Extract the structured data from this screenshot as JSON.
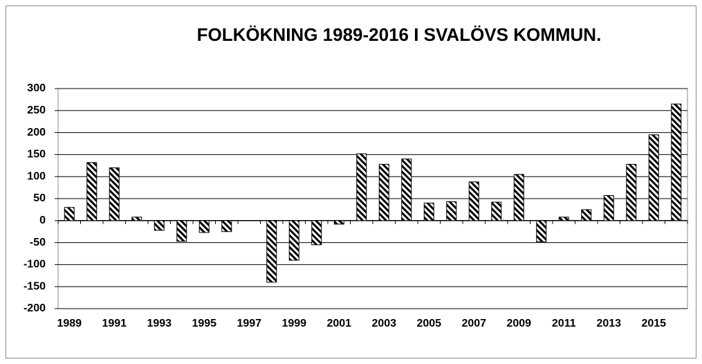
{
  "chart_data": {
    "type": "bar",
    "title": "FOLKÖKNING 1989-2016 I SVALÖVS KOMMUN.",
    "categories": [
      "1989",
      null,
      "1991",
      null,
      "1993",
      null,
      "1995",
      null,
      "1997",
      null,
      "1999",
      null,
      "2001",
      null,
      "2003",
      null,
      "2005",
      null,
      "2007",
      null,
      "2009",
      null,
      "2011",
      null,
      "2013",
      null,
      "2015",
      null
    ],
    "values": [
      30,
      132,
      120,
      8,
      -22,
      -47,
      -27,
      -25,
      0,
      -140,
      -90,
      -55,
      -8,
      152,
      128,
      140,
      40,
      43,
      88,
      42,
      105,
      -48,
      8,
      25,
      57,
      128,
      195,
      265
    ],
    "color": "#000000",
    "ylim": [
      -200,
      300
    ],
    "yticks": [
      -200,
      -150,
      -100,
      -50,
      0,
      50,
      100,
      150,
      200,
      250,
      300
    ],
    "grid": true
  }
}
